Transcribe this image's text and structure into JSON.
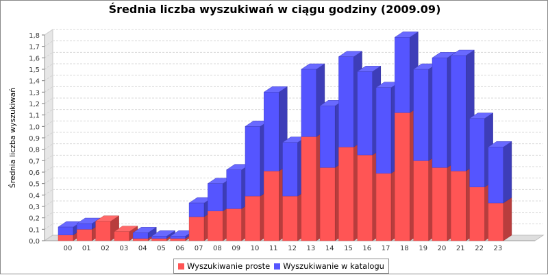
{
  "chart_data": {
    "type": "bar",
    "stacked": true,
    "title": "Średnia liczba wyszukiwań w ciągu godziny (2009.09)",
    "xlabel": "",
    "ylabel": "Średnia liczba wyszukiwań",
    "ylim": [
      0,
      1.8
    ],
    "ytick_step": 0.1,
    "yticks": [
      "0,0",
      "0,1",
      "0,2",
      "0,3",
      "0,4",
      "0,5",
      "0,6",
      "0,7",
      "0,8",
      "0,9",
      "1,0",
      "1,1",
      "1,2",
      "1,3",
      "1,4",
      "1,5",
      "1,6",
      "1,7",
      "1,8"
    ],
    "grid": true,
    "legend_position": "bottom",
    "categories": [
      "00",
      "01",
      "02",
      "03",
      "04",
      "05",
      "06",
      "07",
      "08",
      "09",
      "10",
      "11",
      "12",
      "13",
      "14",
      "15",
      "16",
      "17",
      "18",
      "19",
      "20",
      "21",
      "22",
      "23"
    ],
    "series": [
      {
        "name": "Wyszukiwanie proste",
        "color": "#ff5555",
        "values": [
          0.05,
          0.1,
          0.17,
          0.08,
          0.02,
          0.02,
          0.02,
          0.21,
          0.26,
          0.28,
          0.39,
          0.61,
          0.39,
          0.91,
          0.64,
          0.82,
          0.75,
          0.59,
          1.12,
          0.7,
          0.64,
          0.61,
          0.47,
          0.33
        ]
      },
      {
        "name": "Wyszukiwanie w katalogu",
        "color": "#5555ff",
        "values": [
          0.07,
          0.05,
          0.0,
          0.0,
          0.05,
          0.02,
          0.02,
          0.12,
          0.24,
          0.34,
          0.61,
          0.69,
          0.47,
          0.59,
          0.54,
          0.79,
          0.73,
          0.75,
          0.66,
          0.8,
          0.96,
          1.01,
          0.6,
          0.49
        ]
      }
    ]
  }
}
